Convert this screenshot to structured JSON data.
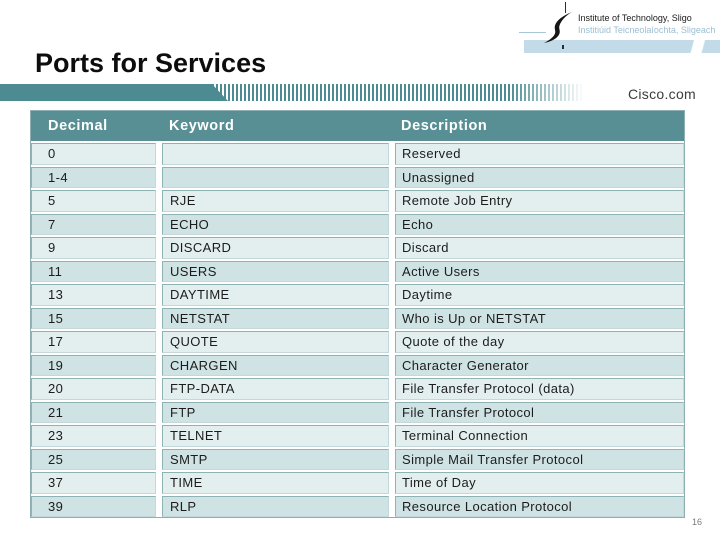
{
  "slide": {
    "title": "Ports for Services",
    "page_number": "16"
  },
  "logo": {
    "name_en": "Institute of Technology, Sligo",
    "name_irish": "Institiúid Teicneolaíochta, Sligeach"
  },
  "banner": {
    "brand": "Cisco.com"
  },
  "colors": {
    "banner_teal": "#4b8b91",
    "table_header_teal": "#578f94",
    "row_light": "#e3efef",
    "row_dark": "#cfe3e4",
    "logo_band_blue": "#c3dbe8"
  },
  "table": {
    "columns": [
      "Decimal",
      "Keyword",
      "Description"
    ],
    "rows": [
      [
        "0",
        "",
        "Reserved"
      ],
      [
        "1-4",
        "",
        "Unassigned"
      ],
      [
        "5",
        "RJE",
        "Remote Job Entry"
      ],
      [
        "7",
        "ECHO",
        "Echo"
      ],
      [
        "9",
        "DISCARD",
        "Discard"
      ],
      [
        "11",
        "USERS",
        "Active Users"
      ],
      [
        "13",
        "DAYTIME",
        "Daytime"
      ],
      [
        "15",
        "NETSTAT",
        "Who is Up or NETSTAT"
      ],
      [
        "17",
        "QUOTE",
        "Quote of the day"
      ],
      [
        "19",
        "CHARGEN",
        "Character Generator"
      ],
      [
        "20",
        "FTP-DATA",
        "File Transfer Protocol (data)"
      ],
      [
        "21",
        "FTP",
        "File Transfer Protocol"
      ],
      [
        "23",
        "TELNET",
        "Terminal Connection"
      ],
      [
        "25",
        "SMTP",
        "Simple Mail Transfer Protocol"
      ],
      [
        "37",
        "TIME",
        "Time of Day"
      ],
      [
        "39",
        "RLP",
        "Resource Location Protocol"
      ]
    ]
  }
}
